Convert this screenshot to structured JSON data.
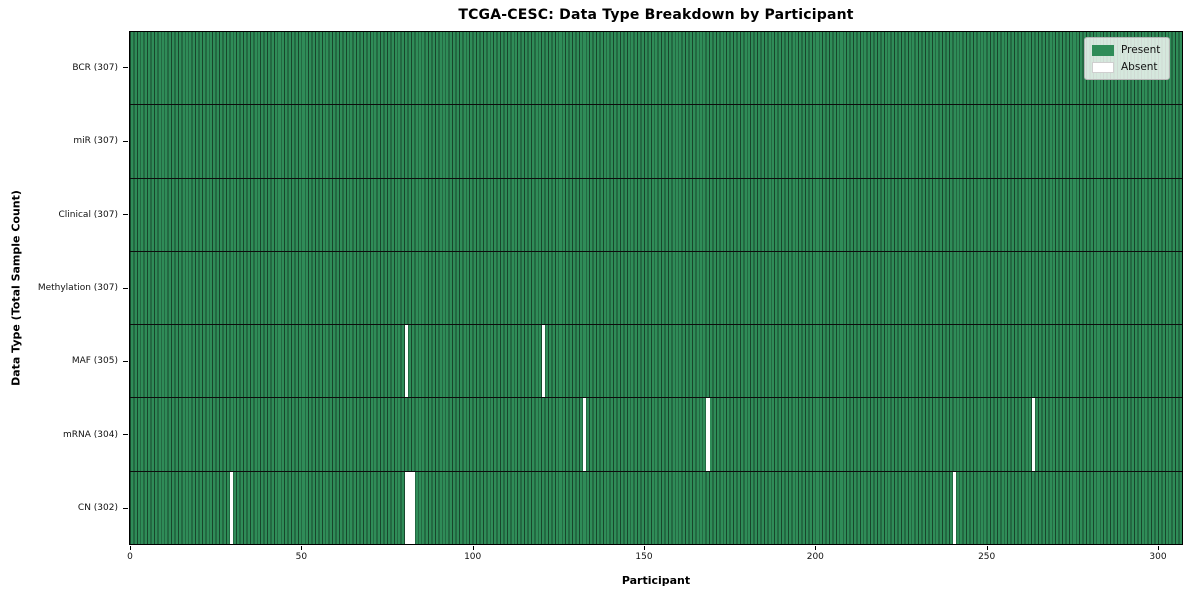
{
  "title": "TCGA-CESC: Data Type Breakdown by Participant",
  "xlabel": "Participant",
  "ylabel": "Data Type (Total Sample Count)",
  "legend": {
    "present_label": "Present",
    "absent_label": "Absent"
  },
  "colors": {
    "present": "#2F8C58",
    "absent": "#FFFFFF",
    "cell_grid_line": "rgba(0,0,0,0.5)",
    "row_divider": "#0d0d0d"
  },
  "chart_data": {
    "type": "heatmap",
    "title": "TCGA-CESC: Data Type Breakdown by Participant",
    "xlabel": "Participant",
    "ylabel": "Data Type (Total Sample Count)",
    "n_participants": 307,
    "x_range": [
      0,
      307
    ],
    "x_tick_values": [
      0,
      50,
      100,
      150,
      200,
      250,
      300
    ],
    "x_tick_labels": [
      "0",
      "50",
      "100",
      "150",
      "200",
      "250",
      "300"
    ],
    "legend_entries": [
      "Present",
      "Absent"
    ],
    "legend_position": "upper right",
    "grid": false,
    "rows": [
      {
        "label": "BCR (307)",
        "data_type": "BCR",
        "total_sample_count": 307,
        "absent_participants": []
      },
      {
        "label": "miR (307)",
        "data_type": "miR",
        "total_sample_count": 307,
        "absent_participants": []
      },
      {
        "label": "Clinical (307)",
        "data_type": "Clinical",
        "total_sample_count": 307,
        "absent_participants": []
      },
      {
        "label": "Methylation (307)",
        "data_type": "Methylation",
        "total_sample_count": 307,
        "absent_participants": []
      },
      {
        "label": "MAF (305)",
        "data_type": "MAF",
        "total_sample_count": 305,
        "absent_participants": [
          80,
          120
        ]
      },
      {
        "label": "mRNA (304)",
        "data_type": "mRNA",
        "total_sample_count": 304,
        "absent_participants": [
          132,
          168,
          263
        ]
      },
      {
        "label": "CN (302)",
        "data_type": "CN",
        "total_sample_count": 302,
        "absent_participants": [
          29,
          80,
          81,
          82,
          240
        ]
      }
    ]
  }
}
